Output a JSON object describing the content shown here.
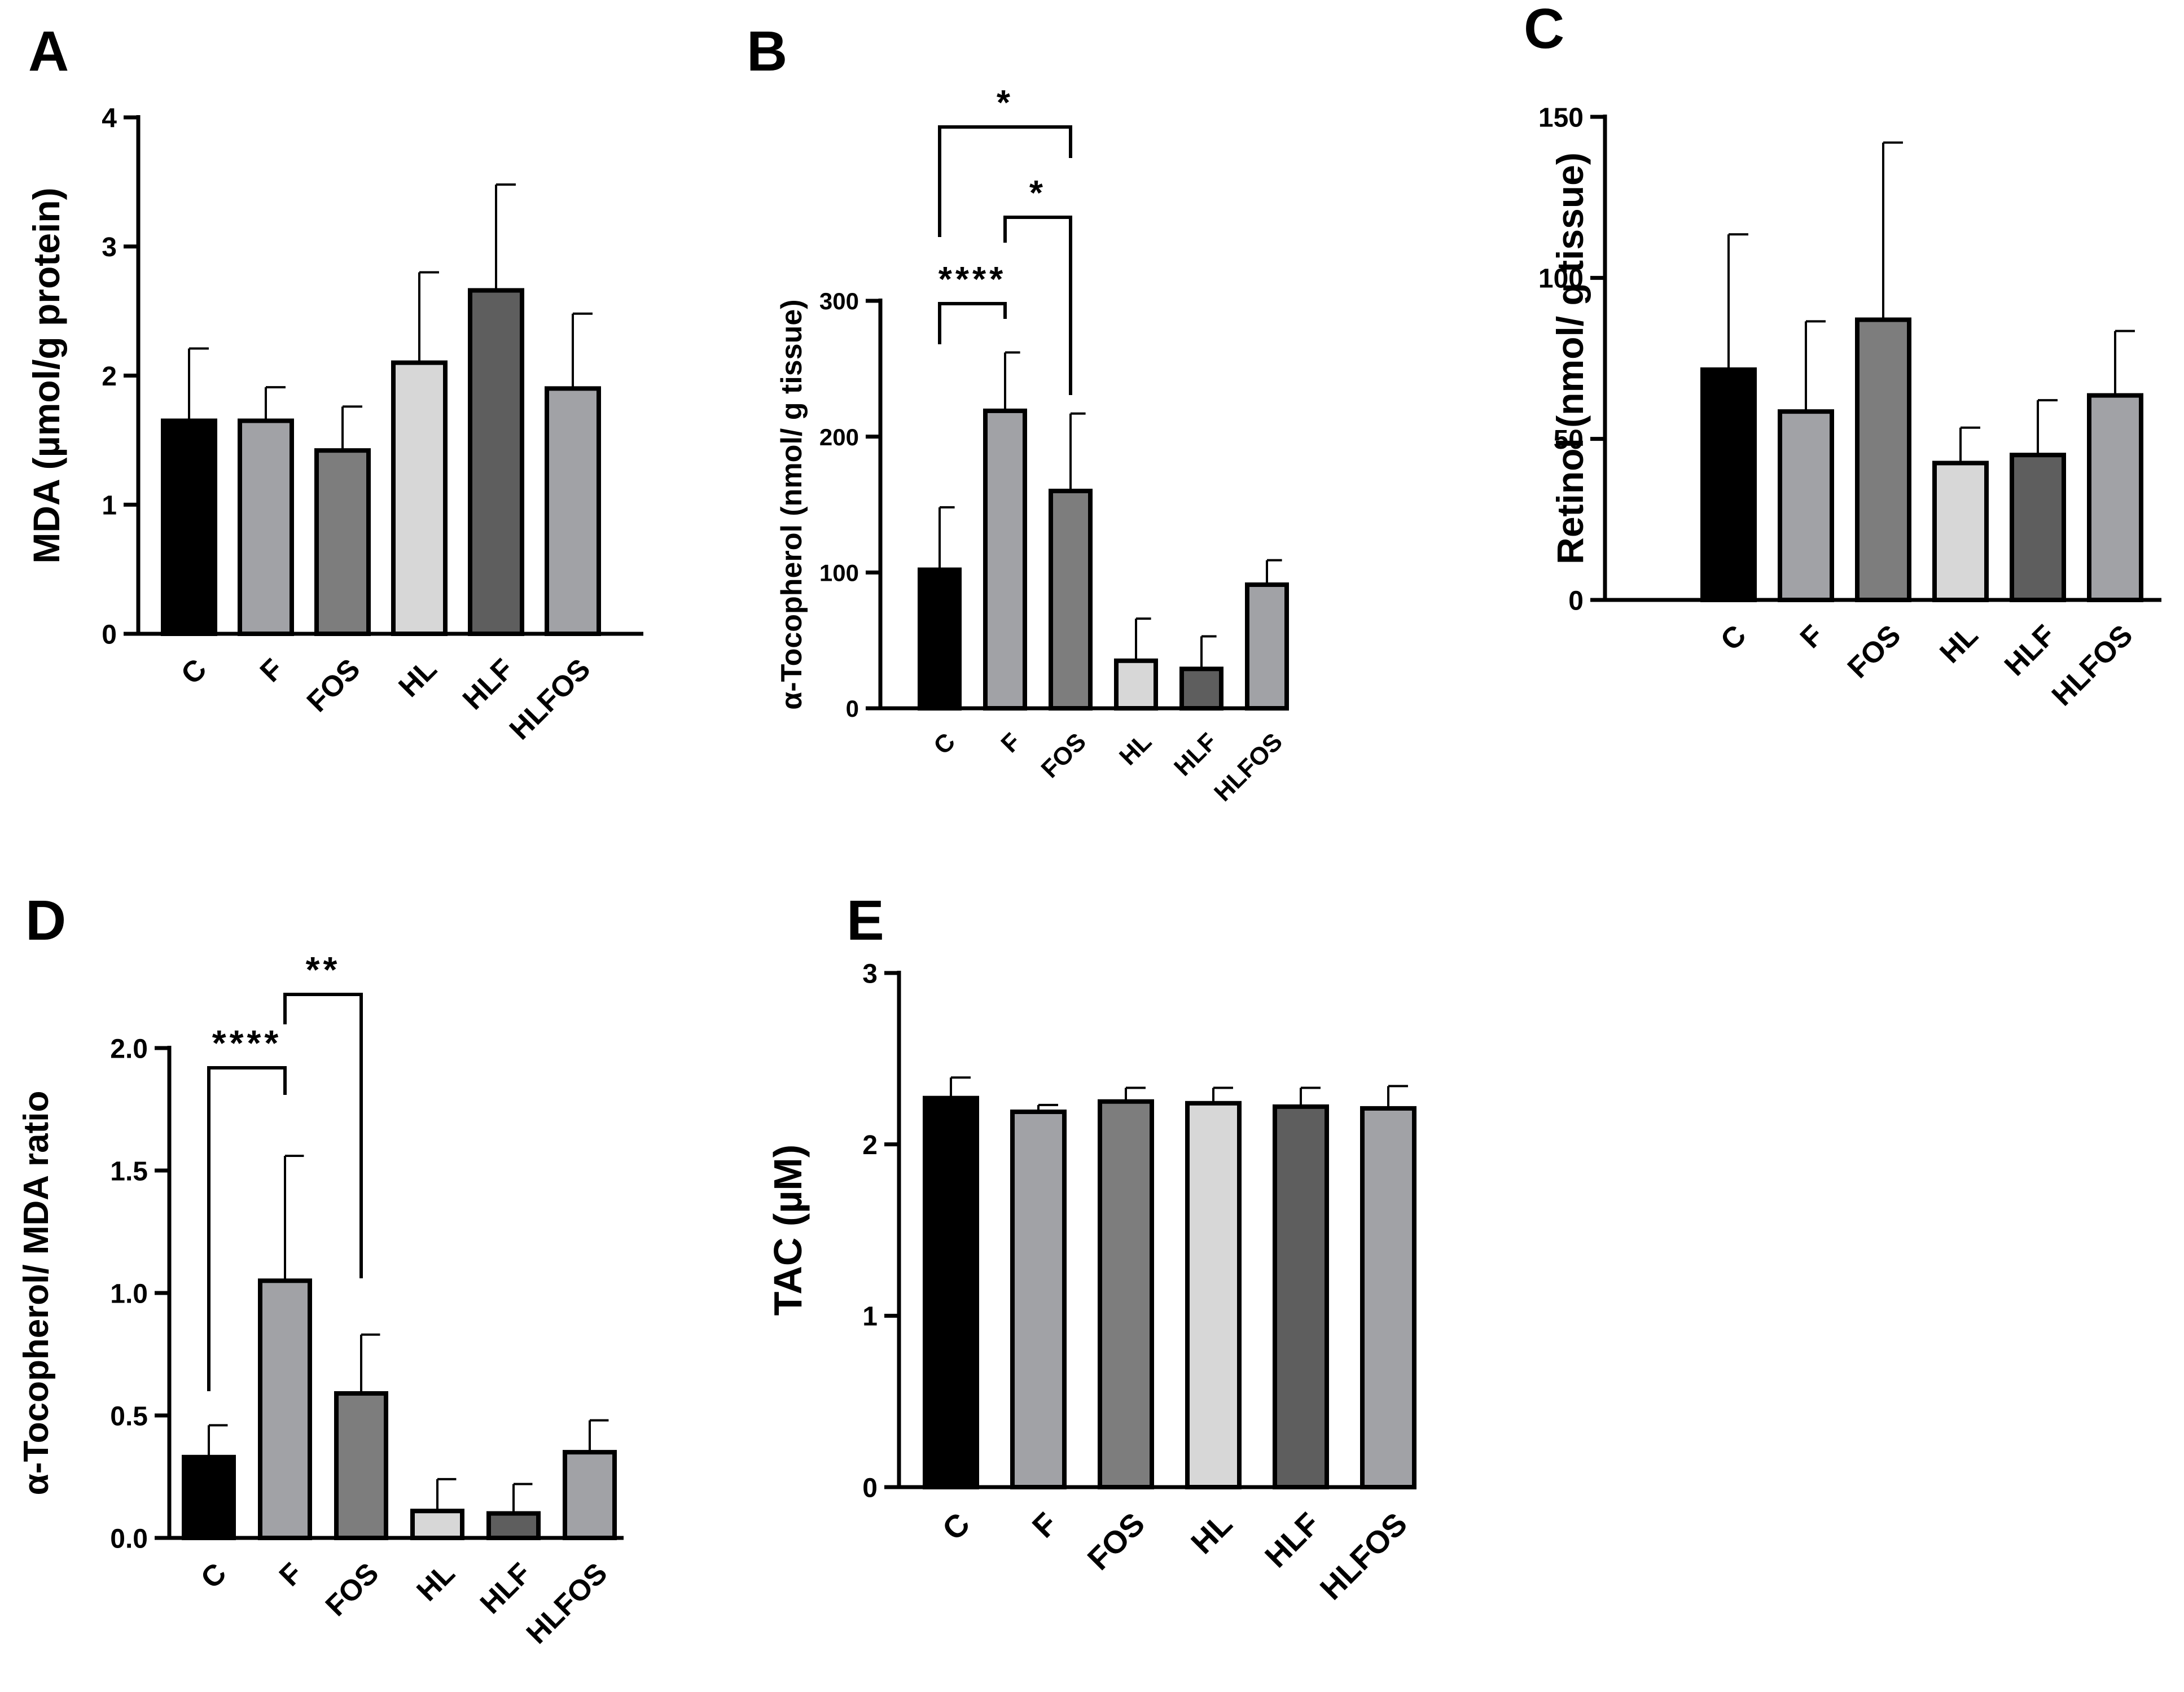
{
  "colors": {
    "C": "#000000",
    "F": "#a1a2a6",
    "FOS": "#7d7d7d",
    "HL": "#d7d7d7",
    "HLF": "#5e5e5e",
    "HLFOS": "#a1a2a6"
  },
  "chart_data": [
    {
      "type": "bar",
      "panel": "A",
      "title": "",
      "xlabel": "",
      "ylabel": "MDA (µmol/g protein)",
      "categories": [
        "C",
        "F",
        "FOS",
        "HL",
        "HLF",
        "HLFOS"
      ],
      "values": [
        1.65,
        1.65,
        1.42,
        2.1,
        2.66,
        1.9
      ],
      "errors": [
        0.56,
        0.26,
        0.34,
        0.7,
        0.82,
        0.58
      ],
      "ylim": [
        0,
        4
      ],
      "yticks": [
        "0",
        "1",
        "2",
        "3",
        "4"
      ],
      "significance": []
    },
    {
      "type": "bar",
      "panel": "B",
      "title": "",
      "xlabel": "",
      "ylabel": "α-Tocopherol (nmol/ g tissue)",
      "categories": [
        "C",
        "F",
        "FOS",
        "HL",
        "HLF",
        "HLFOS"
      ],
      "values": [
        102,
        219,
        160,
        35,
        29,
        91
      ],
      "errors": [
        46,
        43,
        57,
        31,
        24,
        18
      ],
      "ylim": [
        0,
        300
      ],
      "yticks": [
        "0",
        "100",
        "200",
        "300"
      ],
      "significance": [
        {
          "from": "C",
          "to": "F",
          "label": "****"
        },
        {
          "from": "F",
          "to": "FOS",
          "label": "*"
        },
        {
          "from": "C",
          "to": "FOS",
          "label": "*"
        }
      ]
    },
    {
      "type": "bar",
      "panel": "C",
      "title": "",
      "xlabel": "",
      "ylabel": "Retinol (nmol/ g tissue)",
      "categories": [
        "C",
        "F",
        "FOS",
        "HL",
        "HLF",
        "HLFOS"
      ],
      "values": [
        71.5,
        58.5,
        87,
        42.5,
        45,
        63.5
      ],
      "errors": [
        42,
        28,
        55,
        11,
        17,
        20
      ],
      "ylim": [
        0,
        150
      ],
      "yticks": [
        "0",
        "50",
        "100",
        "150"
      ],
      "significance": []
    },
    {
      "type": "bar",
      "panel": "D",
      "title": "",
      "xlabel": "",
      "ylabel": "α-Tocopherol/ MDA ratio",
      "categories": [
        "C",
        "F",
        "FOS",
        "HL",
        "HLF",
        "HLFOS"
      ],
      "values": [
        0.33,
        1.05,
        0.59,
        0.11,
        0.1,
        0.35
      ],
      "errors": [
        0.13,
        0.51,
        0.24,
        0.13,
        0.12,
        0.13
      ],
      "ylim": [
        0,
        2.0
      ],
      "yticks": [
        "0.0",
        "0.5",
        "1.0",
        "1.5",
        "2.0"
      ],
      "significance": [
        {
          "from": "C",
          "to": "F",
          "label": "****"
        },
        {
          "from": "F",
          "to": "FOS",
          "label": "**"
        }
      ]
    },
    {
      "type": "bar",
      "panel": "E",
      "title": "",
      "xlabel": "",
      "ylabel": "TAC (µM)",
      "categories": [
        "C",
        "F",
        "FOS",
        "HL",
        "HLF",
        "HLFOS"
      ],
      "values": [
        2.27,
        2.19,
        2.25,
        2.24,
        2.22,
        2.21
      ],
      "errors": [
        0.12,
        0.04,
        0.08,
        0.09,
        0.11,
        0.13
      ],
      "ylim": [
        0,
        3
      ],
      "yticks": [
        "0",
        "1",
        "2",
        "3"
      ],
      "significance": []
    }
  ]
}
